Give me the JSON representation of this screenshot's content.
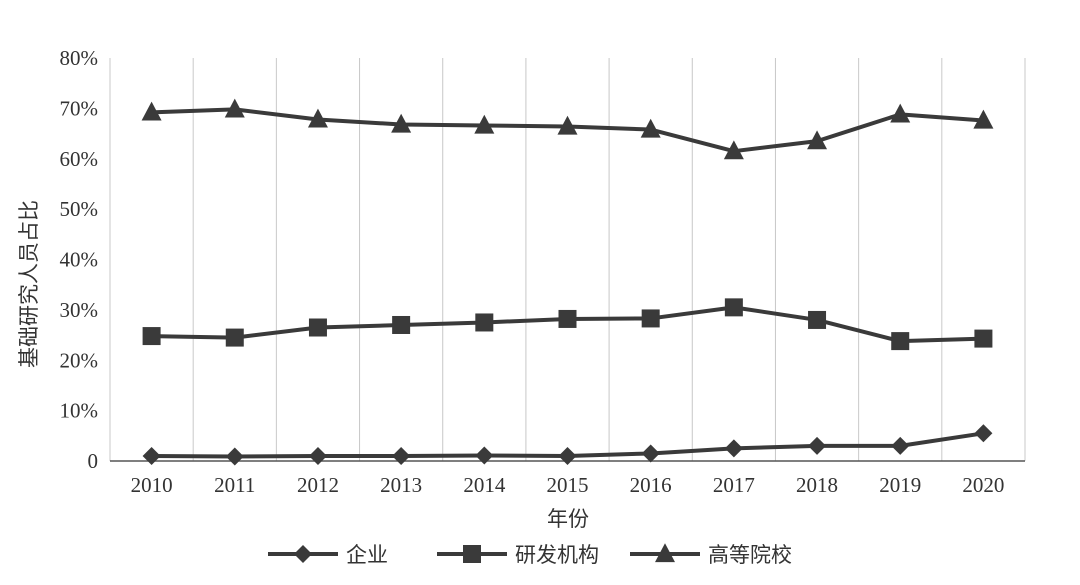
{
  "chart_data": {
    "type": "line",
    "title": "",
    "xlabel": "年份",
    "ylabel": "基础研究人员占比",
    "categories": [
      "2010",
      "2011",
      "2012",
      "2013",
      "2014",
      "2015",
      "2016",
      "2017",
      "2018",
      "2019",
      "2020"
    ],
    "y_ticks": [
      "0",
      "10%",
      "20%",
      "30%",
      "40%",
      "50%",
      "60%",
      "70%",
      "80%"
    ],
    "ylim": [
      0,
      80
    ],
    "unit": "%",
    "grid": "vertical",
    "legend_position": "bottom",
    "series": [
      {
        "name": "企业",
        "marker": "diamond",
        "values": [
          1.0,
          0.9,
          1.0,
          1.0,
          1.1,
          1.0,
          1.5,
          2.5,
          3.0,
          3.0,
          5.5
        ]
      },
      {
        "name": "研发机构",
        "marker": "square",
        "values": [
          24.8,
          24.5,
          26.5,
          27.0,
          27.5,
          28.2,
          28.3,
          30.5,
          28.0,
          23.8,
          24.3
        ]
      },
      {
        "name": "高等院校",
        "marker": "triangle",
        "values": [
          69.2,
          69.8,
          67.8,
          66.8,
          66.6,
          66.4,
          65.8,
          61.5,
          63.5,
          68.8,
          67.6
        ]
      }
    ],
    "colors": {
      "line": "#3a3a3a",
      "grid": "#c8c8c8",
      "text": "#333333"
    }
  }
}
